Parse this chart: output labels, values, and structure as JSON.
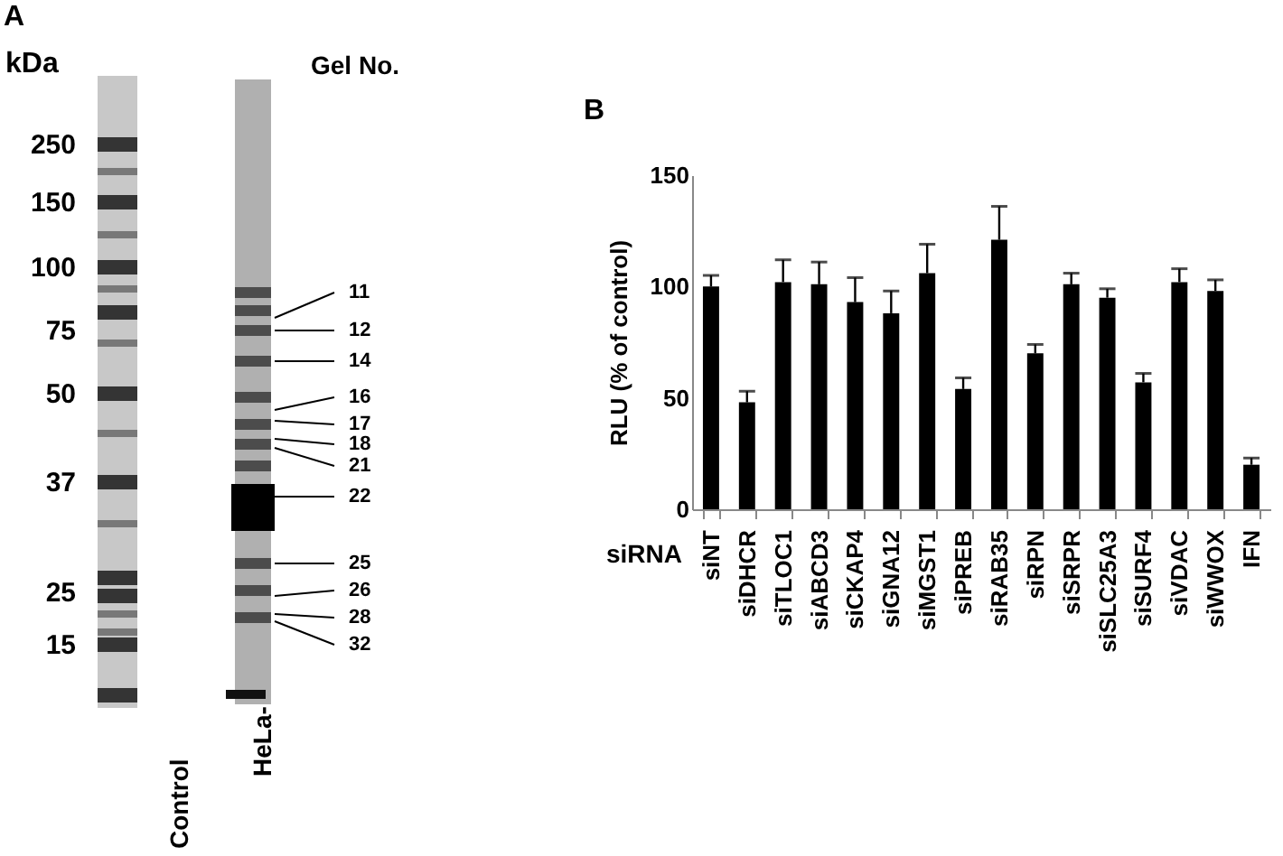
{
  "chart_data": [
    {
      "type": "other",
      "title": "A",
      "annotations": [
        "kDa",
        "250",
        "150",
        "100",
        "75",
        "50",
        "37",
        "25",
        "15",
        "Gel No.",
        "11",
        "12",
        "14",
        "16",
        "17",
        "18",
        "21",
        "22",
        "25",
        "26",
        "28",
        "32",
        "Control",
        "HeLa-"
      ]
    },
    {
      "type": "bar",
      "title": "B",
      "xlabel": "siRNA",
      "ylabel": "RLU (% of control)",
      "categories": [
        "siNT",
        "siDHCR",
        "siTLOC1",
        "siABCD3",
        "siCKAP4",
        "siGNA12",
        "siMGST1",
        "siPREB",
        "siRAB35",
        "siRPN",
        "siSRPR",
        "siSLC25A3",
        "siSURF4",
        "siVDAC",
        "siWWOX",
        "IFN"
      ],
      "values": [
        100,
        48,
        102,
        101,
        93,
        88,
        106,
        54,
        121,
        70,
        101,
        95,
        57,
        102,
        98,
        20
      ],
      "errors": [
        [
          100,
          105
        ],
        [
          48,
          53
        ],
        [
          102,
          112
        ],
        [
          101,
          111
        ],
        [
          93,
          104
        ],
        [
          88,
          98
        ],
        [
          106,
          119
        ],
        [
          54,
          59
        ],
        [
          121,
          136
        ],
        [
          70,
          74
        ],
        [
          101,
          106
        ],
        [
          95,
          99
        ],
        [
          57,
          61
        ],
        [
          102,
          108
        ],
        [
          98,
          103
        ],
        [
          20,
          23
        ]
      ],
      "color": "#000000",
      "ylim": [
        0,
        150
      ],
      "yticks": [
        0,
        50,
        100,
        150
      ],
      "grid": false
    }
  ]
}
